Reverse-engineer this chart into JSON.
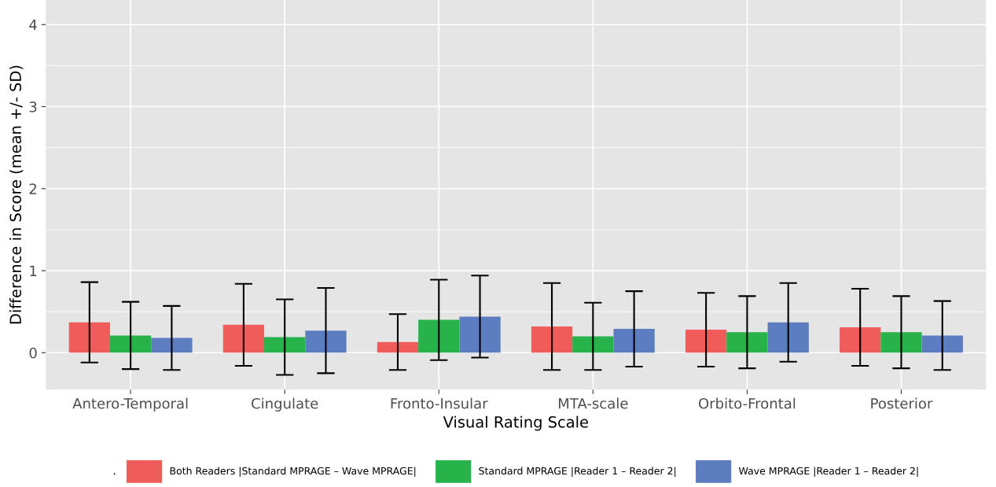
{
  "chart_data": {
    "type": "bar",
    "xlabel": "Visual Rating Scale",
    "ylabel": "Difference in Score (mean +/- SD)",
    "legend_title": ".",
    "categories": [
      "Antero-Temporal",
      "Cingulate",
      "Fronto-Insular",
      "MTA-scale",
      "Orbito-Frontal",
      "Posterior"
    ],
    "series": [
      {
        "name": "Both Readers |Standard MPRAGE – Wave MPRAGE|",
        "color": "#f05c59",
        "values": [
          0.37,
          0.34,
          0.13,
          0.32,
          0.28,
          0.31
        ],
        "errors": [
          0.49,
          0.5,
          0.34,
          0.53,
          0.45,
          0.47
        ]
      },
      {
        "name": "Standard MPRAGE |Reader 1 – Reader 2|",
        "color": "#27b24a",
        "values": [
          0.21,
          0.19,
          0.4,
          0.2,
          0.25,
          0.25
        ],
        "errors": [
          0.41,
          0.46,
          0.49,
          0.41,
          0.44,
          0.44
        ]
      },
      {
        "name": "Wave MPRAGE |Reader 1 – Reader 2|",
        "color": "#5c7dc0",
        "values": [
          0.18,
          0.27,
          0.44,
          0.29,
          0.37,
          0.21
        ],
        "errors": [
          0.39,
          0.52,
          0.5,
          0.46,
          0.48,
          0.42
        ]
      }
    ],
    "ylim": [
      -0.45,
      4.3
    ],
    "yticks": [
      0,
      1,
      2,
      3,
      4
    ],
    "grid": true,
    "legend": "bottom"
  }
}
